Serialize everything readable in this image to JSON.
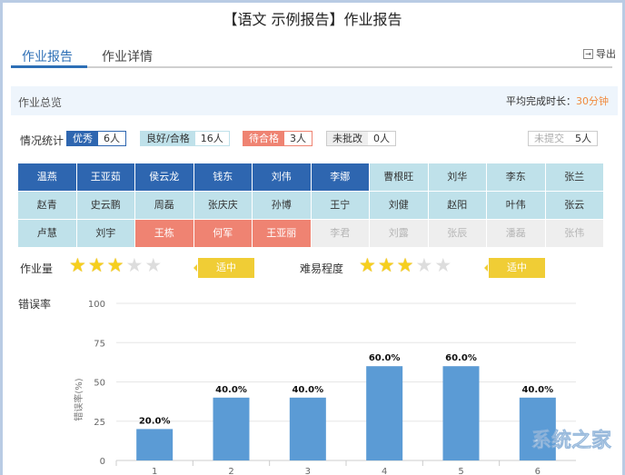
{
  "title": "【语文 示例报告】作业报告",
  "tabs": [
    {
      "label": "作业报告"
    },
    {
      "label": "作业详情"
    }
  ],
  "export": {
    "label": "导出",
    "icon": "export-icon"
  },
  "overview": {
    "label": "作业总览",
    "avg_label": "平均完成时长：",
    "avg_value": "30分钟"
  },
  "stats": {
    "label": "情况统计",
    "items": [
      {
        "label": "优秀",
        "count": "6人",
        "color": "#2e66b0"
      },
      {
        "label": "良好/合格",
        "count": "16人",
        "color": "#bfe1ea"
      },
      {
        "label": "待合格",
        "count": "3人",
        "color": "#ef8372"
      },
      {
        "label": "未批改",
        "count": "0人",
        "color": "#eeeeee"
      },
      {
        "label": "未提交",
        "count": "5人",
        "color": "#ffffff"
      }
    ]
  },
  "students": [
    {
      "name": "温燕",
      "s": "ex"
    },
    {
      "name": "王亚茹",
      "s": "ex"
    },
    {
      "name": "侯云龙",
      "s": "ex"
    },
    {
      "name": "钱东",
      "s": "ex"
    },
    {
      "name": "刘伟",
      "s": "ex"
    },
    {
      "name": "李娜",
      "s": "ex"
    },
    {
      "name": "曹根旺",
      "s": "good"
    },
    {
      "name": "刘华",
      "s": "good"
    },
    {
      "name": "李东",
      "s": "good"
    },
    {
      "name": "张兰",
      "s": "good"
    },
    {
      "name": "赵青",
      "s": "good"
    },
    {
      "name": "史云鹏",
      "s": "good"
    },
    {
      "name": "周磊",
      "s": "good"
    },
    {
      "name": "张庆庆",
      "s": "good"
    },
    {
      "name": "孙博",
      "s": "good"
    },
    {
      "name": "王宁",
      "s": "good"
    },
    {
      "name": "刘健",
      "s": "good"
    },
    {
      "name": "赵阳",
      "s": "good"
    },
    {
      "name": "叶伟",
      "s": "good"
    },
    {
      "name": "张云",
      "s": "good"
    },
    {
      "name": "卢慧",
      "s": "good"
    },
    {
      "name": "刘宇",
      "s": "good"
    },
    {
      "name": "王栋",
      "s": "bad"
    },
    {
      "name": "何军",
      "s": "bad"
    },
    {
      "name": "王亚丽",
      "s": "bad"
    },
    {
      "name": "李君",
      "s": "none"
    },
    {
      "name": "刘露",
      "s": "none"
    },
    {
      "name": "张辰",
      "s": "none"
    },
    {
      "name": "潘磊",
      "s": "none"
    },
    {
      "name": "张伟",
      "s": "none"
    }
  ],
  "workload": {
    "label": "作业量",
    "stars": 3,
    "max": 5,
    "badge": "适中"
  },
  "difficulty": {
    "label": "难易程度",
    "stars": 3,
    "max": 5,
    "badge": "适中"
  },
  "error_label": "错误率",
  "chart_data": {
    "type": "bar",
    "categories": [
      "1",
      "2",
      "3",
      "4",
      "5",
      "6"
    ],
    "values": [
      20,
      40,
      40,
      60,
      60,
      40
    ],
    "data_labels": [
      "20.0%",
      "40.0%",
      "40.0%",
      "60.0%",
      "60.0%",
      "40.0%"
    ],
    "ylabel": "错误率(%)",
    "ylim": [
      0,
      100
    ],
    "yticks": [
      "0",
      "25",
      "50",
      "75",
      "100"
    ],
    "grid": true,
    "color": "#5b9bd5"
  },
  "watermark": "系统之家"
}
